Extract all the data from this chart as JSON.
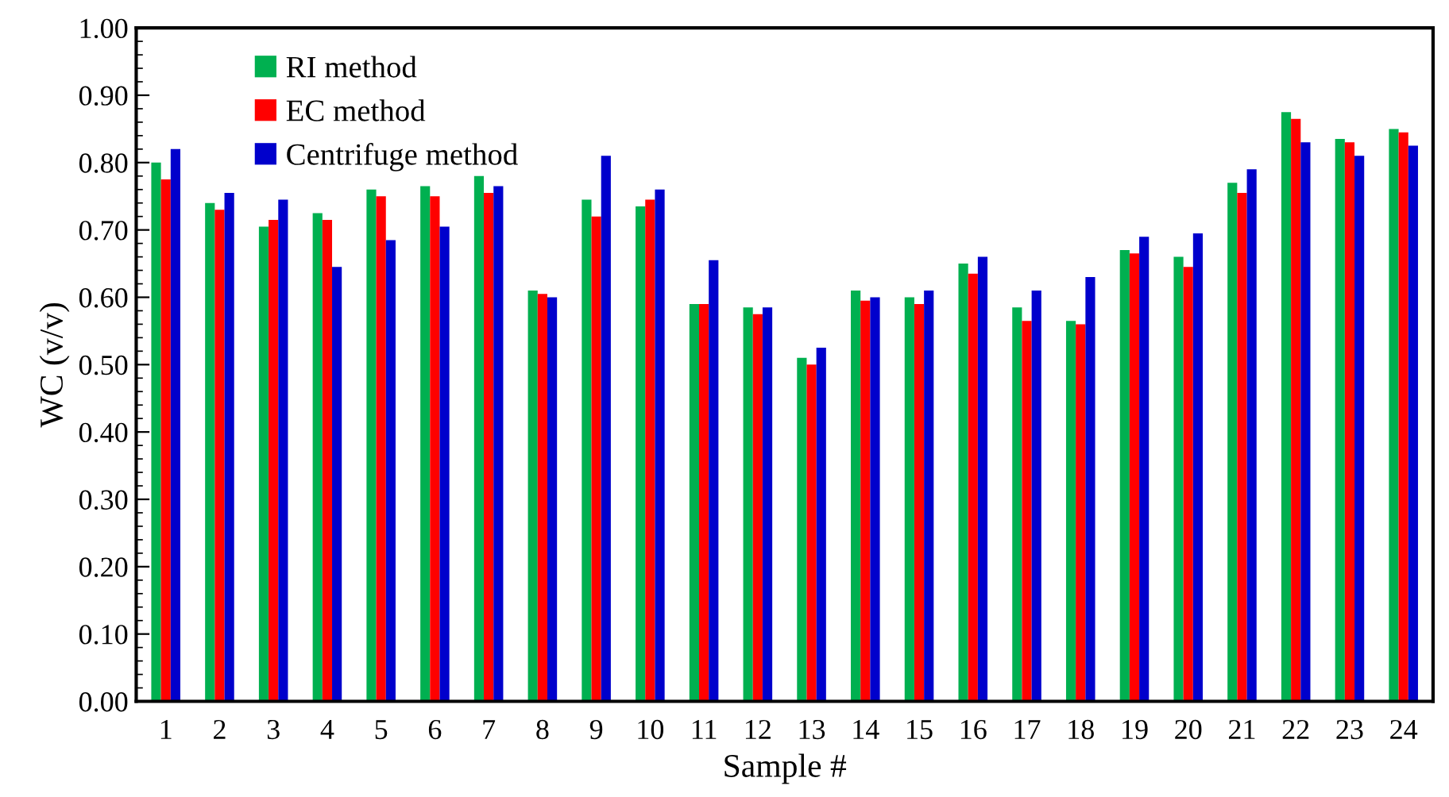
{
  "chart_data": {
    "type": "bar",
    "xlabel": "Sample #",
    "ylabel": "WC (v/v)",
    "categories": [
      "1",
      "2",
      "3",
      "4",
      "5",
      "6",
      "7",
      "8",
      "9",
      "10",
      "11",
      "12",
      "13",
      "14",
      "15",
      "16",
      "17",
      "18",
      "19",
      "20",
      "21",
      "22",
      "23",
      "24"
    ],
    "series": [
      {
        "name": "RI method",
        "color": "#00b050",
        "values": [
          0.8,
          0.74,
          0.705,
          0.725,
          0.76,
          0.765,
          0.78,
          0.61,
          0.745,
          0.735,
          0.59,
          0.585,
          0.51,
          0.61,
          0.6,
          0.65,
          0.585,
          0.565,
          0.67,
          0.66,
          0.77,
          0.875,
          0.835,
          0.85
        ]
      },
      {
        "name": "EC method",
        "color": "#ff0000",
        "values": [
          0.775,
          0.73,
          0.715,
          0.715,
          0.75,
          0.75,
          0.755,
          0.605,
          0.72,
          0.745,
          0.59,
          0.575,
          0.5,
          0.595,
          0.59,
          0.635,
          0.565,
          0.56,
          0.665,
          0.645,
          0.755,
          0.865,
          0.83,
          0.845
        ]
      },
      {
        "name": "Centrifuge method",
        "color": "#0000cc",
        "values": [
          0.82,
          0.755,
          0.745,
          0.645,
          0.685,
          0.705,
          0.765,
          0.6,
          0.81,
          0.76,
          0.655,
          0.585,
          0.525,
          0.6,
          0.61,
          0.66,
          0.61,
          0.63,
          0.69,
          0.695,
          0.79,
          0.83,
          0.81,
          0.825
        ]
      }
    ],
    "ylim": [
      0,
      1.0
    ],
    "yticks": [
      {
        "value": 0,
        "label": "0.00"
      },
      {
        "value": 0.1,
        "label": "0.10"
      },
      {
        "value": 0.2,
        "label": "0.20"
      },
      {
        "value": 0.3,
        "label": "0.30"
      },
      {
        "value": 0.4,
        "label": "0.40"
      },
      {
        "value": 0.5,
        "label": "0.50"
      },
      {
        "value": 0.6,
        "label": "0.60"
      },
      {
        "value": 0.7,
        "label": "0.70"
      },
      {
        "value": 0.8,
        "label": "0.80"
      },
      {
        "value": 0.9,
        "label": "0.90"
      },
      {
        "value": 1.0,
        "label": "1.00"
      }
    ],
    "grid": false,
    "legend": "top left"
  }
}
